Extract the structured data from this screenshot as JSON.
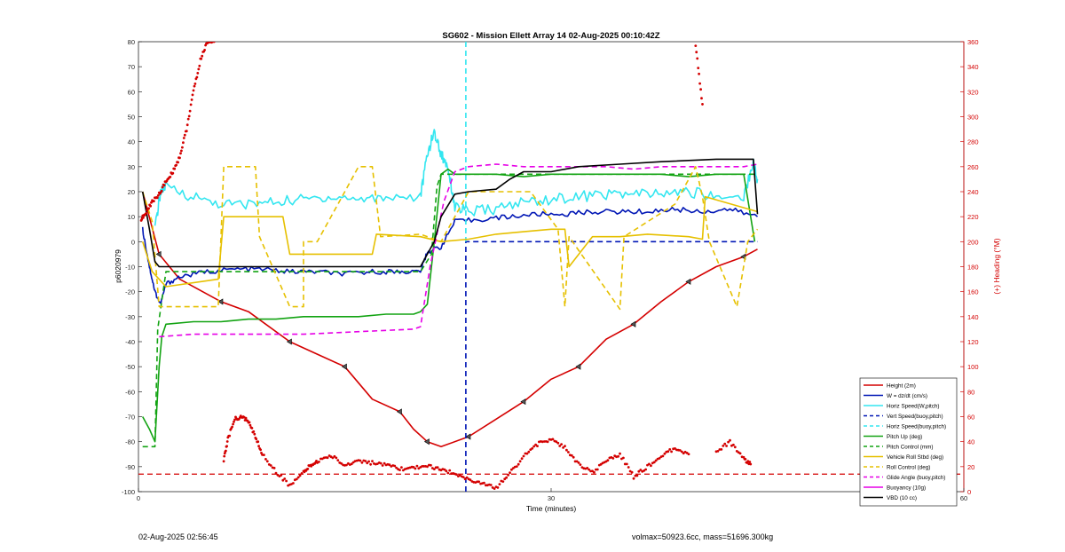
{
  "chart_data": {
    "type": "line",
    "title": "SG602 - Mission Ellett Array 14 02-Aug-2025 00:10:42Z",
    "xlabel": "Time (minutes)",
    "ylabel": "p6020979",
    "y2label": "(+) Heading (°M)",
    "xlim": [
      0,
      60
    ],
    "ylim": [
      -100,
      80
    ],
    "y2lim": [
      0,
      360
    ],
    "xticks": [
      0,
      30,
      60
    ],
    "yticks": [
      -100,
      -90,
      -80,
      -70,
      -60,
      -50,
      -40,
      -30,
      -20,
      -10,
      0,
      10,
      20,
      30,
      40,
      50,
      60,
      70,
      80
    ],
    "y2ticks": [
      0,
      20,
      40,
      60,
      80,
      100,
      120,
      140,
      160,
      180,
      200,
      220,
      240,
      260,
      280,
      300,
      320,
      340,
      360
    ],
    "grid": false,
    "legend_position": "lower-right",
    "colors": {
      "height": "#d40000",
      "w": "#0016b5",
      "horiz": "#33e6f0",
      "pitch": "#12a312",
      "roll": "#e6c000",
      "glide": "#e600e6",
      "vbd": "#000000",
      "heading": "#d40000"
    },
    "series": [
      {
        "name": "Height (2m)",
        "style": "solid",
        "color": "#d40000",
        "x": [
          0.3,
          1.5,
          3,
          6,
          8,
          11,
          13,
          15,
          17,
          19,
          20,
          21,
          22,
          24,
          26,
          28,
          30,
          32,
          34,
          36,
          38,
          40,
          42,
          44,
          45
        ],
        "y": [
          20,
          -5,
          -15,
          -24,
          -28,
          -40,
          -45,
          -50,
          -63,
          -68,
          -75,
          -80,
          -82,
          -78,
          -71,
          -64,
          -55,
          -50,
          -39,
          -33,
          -24,
          -16,
          -10,
          -6,
          -3
        ]
      },
      {
        "name": "W = dz/dt (cm/s)",
        "style": "solid",
        "color": "#0016b5",
        "x": [
          0.3,
          0.8,
          1.2,
          1.6,
          2,
          3,
          5,
          7,
          9,
          11,
          13,
          15,
          17,
          19,
          20.5,
          21,
          22,
          23,
          25,
          27,
          29,
          31,
          33,
          35,
          37,
          39,
          41,
          43,
          45
        ],
        "y": [
          5,
          -10,
          -20,
          -25,
          -17,
          -14,
          -12,
          -11,
          -11,
          -12,
          -12,
          -13,
          -12,
          -12,
          -12,
          -4,
          -2,
          8,
          9,
          10,
          11,
          11,
          12,
          12,
          12,
          13,
          12,
          13,
          10
        ]
      },
      {
        "name": "Horiz Speed(W,pitch)",
        "style": "solid",
        "color": "#33e6f0",
        "x": [
          1.2,
          1.6,
          2,
          4,
          6,
          8,
          10,
          12,
          14,
          16,
          18,
          20.5,
          21,
          21.5,
          22,
          22.5,
          23,
          24,
          26,
          28,
          30,
          32,
          34,
          36,
          38,
          40,
          42,
          44,
          44.7,
          45
        ],
        "y": [
          5,
          20,
          22,
          18,
          15,
          15,
          16,
          17,
          18,
          17,
          18,
          18,
          35,
          44,
          35,
          30,
          14,
          12,
          13,
          16,
          17,
          18,
          19,
          19,
          19,
          20,
          18,
          18,
          32,
          25
        ]
      },
      {
        "name": "Vert Speed(buoy,pitch)",
        "style": "dashed",
        "color": "#0016b5",
        "x": [
          23.8,
          23.8,
          45
        ],
        "y": [
          -100,
          0,
          0
        ]
      },
      {
        "name": "Horiz Speed(buoy,pitch)",
        "style": "dashed",
        "color": "#33e6f0",
        "x": [
          23.8,
          23.8
        ],
        "y": [
          80,
          0
        ]
      },
      {
        "name": "Pitch Up (deg)",
        "style": "solid",
        "color": "#12a312",
        "x": [
          0.3,
          0.8,
          1.2,
          1.5,
          1.7,
          2,
          4,
          6,
          8,
          10,
          12,
          14,
          16,
          18,
          20,
          20.5,
          21,
          21.5,
          22,
          22.5,
          23,
          24,
          26,
          28,
          30,
          32,
          34,
          36,
          38,
          40,
          42,
          44,
          44.8
        ],
        "y": [
          -70,
          -75,
          -80,
          -50,
          -38,
          -33,
          -32,
          -32,
          -31,
          -31,
          -30,
          -30,
          -30,
          -29,
          -29,
          -28,
          -25,
          0,
          27,
          29,
          27,
          27,
          27,
          26,
          27,
          27,
          27,
          27,
          27,
          26,
          27,
          27,
          0
        ]
      },
      {
        "name": "Pitch Control (mm)",
        "style": "dashed",
        "color": "#12a312",
        "x": [
          0.3,
          1.2,
          1.4,
          2,
          20.5,
          21.3,
          21.7,
          22,
          45
        ],
        "y": [
          -82,
          -82,
          -35,
          -12,
          -12,
          -5,
          22,
          27,
          27
        ]
      },
      {
        "name": "Vehicle Roll Stbd (deg)",
        "style": "solid",
        "color": "#e6c000",
        "x": [
          0.3,
          1,
          2,
          5.8,
          6.2,
          10.5,
          11,
          17,
          17.3,
          20.5,
          22,
          24,
          26,
          28,
          30,
          31,
          31.3,
          33,
          35,
          37,
          40,
          41,
          41.2,
          45
        ],
        "y": [
          0,
          -12,
          -18,
          -15,
          10,
          10,
          -5,
          -5,
          3,
          2,
          0,
          1,
          3,
          4,
          5,
          5,
          -10,
          2,
          2,
          3,
          2,
          1,
          18,
          12
        ]
      },
      {
        "name": "Roll Control (deg)",
        "style": "dashed",
        "color": "#e6c000",
        "x": [
          0.3,
          1,
          1.5,
          5.8,
          6.2,
          8.5,
          8.8,
          11,
          12,
          12,
          13,
          15,
          16,
          17,
          17.6,
          20.5,
          22,
          24,
          28.5,
          30.5,
          31,
          31.3,
          35,
          35.3,
          39,
          40.5,
          41,
          41.5,
          43.5,
          44.3,
          45
        ],
        "y": [
          20,
          8,
          -26,
          -26,
          30,
          30,
          2,
          -26,
          -26,
          0,
          0,
          20,
          30,
          30,
          2,
          3,
          0,
          20,
          20,
          5,
          -26,
          2,
          -27,
          2,
          15,
          30,
          18,
          0,
          -26,
          0,
          5
        ]
      },
      {
        "name": "Glide Angle (buoy,pitch)",
        "style": "dashed",
        "color": "#e600e6",
        "x": [
          1.5,
          4,
          8,
          12,
          16,
          20,
          20.5,
          21.2,
          22.2,
          23,
          24,
          26,
          28,
          30,
          32,
          34,
          36,
          38,
          40,
          42,
          44,
          45
        ],
        "y": [
          -38,
          -37,
          -37,
          -37,
          -36,
          -35,
          -34,
          -10,
          16,
          28,
          30,
          31,
          30,
          30,
          30,
          30,
          29,
          30,
          30,
          30,
          30,
          31
        ]
      },
      {
        "name": "Buoyancy (10g)",
        "style": "solid",
        "color": "#e600e6",
        "x": [],
        "y": []
      },
      {
        "name": "VBD (10 cc)",
        "style": "solid",
        "color": "#000000",
        "x": [
          0.3,
          0.8,
          1.2,
          1.5,
          2,
          4,
          8,
          12,
          16,
          20.5,
          21,
          21.5,
          22,
          23,
          24,
          26,
          27,
          28,
          30,
          32,
          35,
          38,
          42,
          44.7,
          45
        ],
        "y": [
          20,
          5,
          -8,
          -10,
          -10,
          -10,
          -10,
          -10,
          -10,
          -10,
          -5,
          0,
          10,
          19,
          20,
          21,
          25,
          28,
          28,
          30,
          31,
          32,
          33,
          33,
          11
        ]
      }
    ],
    "heading": {
      "name": "(+) Heading (°M)",
      "axis": "right",
      "x": [
        0.2,
        0.5,
        1,
        1.5,
        2,
        2.5,
        3,
        3.5,
        4,
        4.5,
        5,
        5.5,
        6.2,
        6.5,
        7,
        7.5,
        8,
        8.5,
        9,
        10,
        11,
        12,
        12.5,
        13,
        14,
        15,
        16,
        17,
        18,
        19,
        20,
        21,
        22,
        23,
        24,
        25,
        26,
        27,
        28,
        29,
        30,
        31,
        32,
        33,
        34,
        35,
        36,
        37,
        38,
        39,
        40,
        40.5,
        41,
        42,
        43,
        44,
        44.5
      ],
      "y": [
        218,
        222,
        232,
        238,
        248,
        256,
        268,
        290,
        320,
        345,
        360,
        360,
        25,
        42,
        58,
        60,
        56,
        44,
        30,
        16,
        5,
        15,
        21,
        24,
        29,
        21,
        25,
        23,
        21,
        18,
        19,
        21,
        17,
        15,
        10,
        6,
        3,
        15,
        28,
        38,
        42,
        35,
        22,
        15,
        25,
        30,
        12,
        20,
        28,
        35,
        30,
        358,
        310,
        32,
        40,
        26,
        22
      ]
    },
    "heading_reference": {
      "value": 14,
      "style": "dashed",
      "color": "#d40000"
    },
    "vertical_marker": {
      "x": 23.8,
      "colors": [
        "#0016b5",
        "#33e6f0"
      ]
    }
  },
  "footer": {
    "left": "02-Aug-2025 02:56:45",
    "right": "volmax=50923.6cc, mass=51696.300kg"
  }
}
